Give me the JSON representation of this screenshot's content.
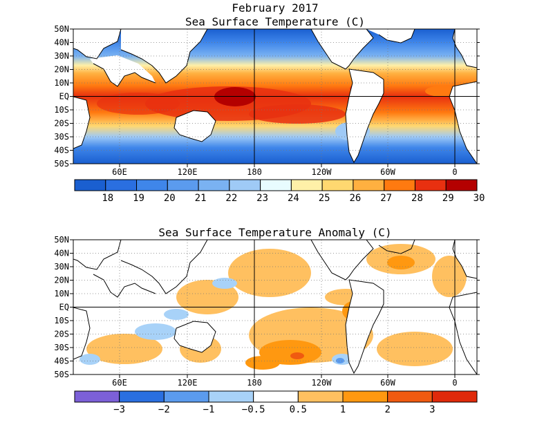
{
  "main_title": "February 2017",
  "panels": [
    {
      "id": "sst",
      "title": "Sea Surface Temperature (C)",
      "lat_ticks": [
        "50N",
        "40N",
        "30N",
        "20N",
        "10N",
        "EQ",
        "10S",
        "20S",
        "30S",
        "40S",
        "50S"
      ],
      "lon_ticks": [
        "60E",
        "120E",
        "180",
        "120W",
        "60W",
        "0"
      ],
      "colorbar": {
        "colors": [
          "#1a5fd0",
          "#2a6fe0",
          "#3f86ea",
          "#5b9bee",
          "#7ab2f2",
          "#9fcaf6",
          "#e8fcff",
          "#fff0a8",
          "#ffd870",
          "#ffb040",
          "#ff7a10",
          "#e83010",
          "#b40000"
        ],
        "labels": [
          "18",
          "19",
          "20",
          "21",
          "22",
          "23",
          "24",
          "25",
          "26",
          "27",
          "28",
          "29",
          "30"
        ]
      }
    },
    {
      "id": "anom",
      "title": "Sea Surface Temperature Anomaly (C)",
      "lat_ticks": [
        "50N",
        "40N",
        "30N",
        "20N",
        "10N",
        "EQ",
        "10S",
        "20S",
        "30S",
        "40S",
        "50S"
      ],
      "lon_ticks": [
        "60E",
        "120E",
        "180",
        "120W",
        "60W",
        "0"
      ],
      "colorbar": {
        "colors": [
          "#7c60d8",
          "#2a6fe0",
          "#5b9bee",
          "#a8d2f8",
          "#ffffff",
          "#ffc060",
          "#ff9810",
          "#f05a10",
          "#e02a0a"
        ],
        "labels": [
          "−3",
          "−2",
          "−1",
          "−0.5",
          "0.5",
          "1",
          "2",
          "3"
        ]
      }
    }
  ]
}
